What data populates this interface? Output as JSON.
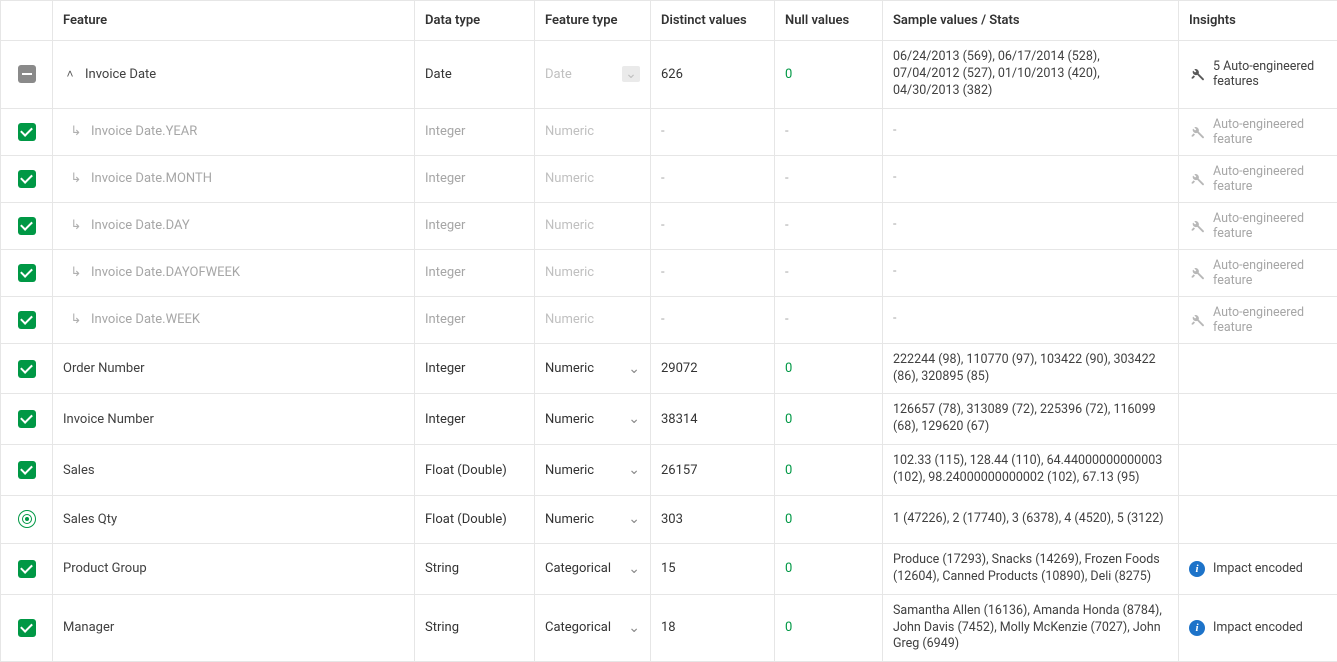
{
  "headers": {
    "feature": "Feature",
    "datatype": "Data type",
    "featuretype": "Feature type",
    "distinct": "Distinct values",
    "nulls": "Null values",
    "sample": "Sample values / Stats",
    "insights": "Insights"
  },
  "rows": [
    {
      "check": "indeterminate",
      "expand": "collapse",
      "feature": "Invoice Date",
      "datatype": "Date",
      "featuretype": "Date",
      "featuretype_disabled": true,
      "distinct": "626",
      "nulls": "0",
      "sample": "06/24/2013 (569), 06/17/2014 (528), 07/04/2012 (527), 01/10/2013 (420), 04/30/2013 (382)",
      "insight_type": "wrench",
      "insight": "5 Auto-engineered features",
      "child": false
    },
    {
      "check": "checked",
      "feature": "Invoice Date.YEAR",
      "datatype": "Integer",
      "featuretype": "Numeric",
      "featuretype_disabled": true,
      "distinct": "-",
      "nulls": "-",
      "sample": "-",
      "insight_type": "wrench-muted",
      "insight": "Auto-engineered feature",
      "child": true
    },
    {
      "check": "checked",
      "feature": "Invoice Date.MONTH",
      "datatype": "Integer",
      "featuretype": "Numeric",
      "featuretype_disabled": true,
      "distinct": "-",
      "nulls": "-",
      "sample": "-",
      "insight_type": "wrench-muted",
      "insight": "Auto-engineered feature",
      "child": true
    },
    {
      "check": "checked",
      "feature": "Invoice Date.DAY",
      "datatype": "Integer",
      "featuretype": "Numeric",
      "featuretype_disabled": true,
      "distinct": "-",
      "nulls": "-",
      "sample": "-",
      "insight_type": "wrench-muted",
      "insight": "Auto-engineered feature",
      "child": true
    },
    {
      "check": "checked",
      "feature": "Invoice Date.DAYOFWEEK",
      "datatype": "Integer",
      "featuretype": "Numeric",
      "featuretype_disabled": true,
      "distinct": "-",
      "nulls": "-",
      "sample": "-",
      "insight_type": "wrench-muted",
      "insight": "Auto-engineered feature",
      "child": true
    },
    {
      "check": "checked",
      "feature": "Invoice Date.WEEK",
      "datatype": "Integer",
      "featuretype": "Numeric",
      "featuretype_disabled": true,
      "distinct": "-",
      "nulls": "-",
      "sample": "-",
      "insight_type": "wrench-muted",
      "insight": "Auto-engineered feature",
      "child": true
    },
    {
      "check": "checked",
      "feature": "Order Number",
      "datatype": "Integer",
      "featuretype": "Numeric",
      "featuretype_disabled": false,
      "distinct": "29072",
      "nulls": "0",
      "sample": "222244 (98), 110770 (97), 103422 (90), 303422 (86), 320895 (85)",
      "insight_type": "none",
      "insight": "",
      "child": false
    },
    {
      "check": "checked",
      "feature": "Invoice Number",
      "datatype": "Integer",
      "featuretype": "Numeric",
      "featuretype_disabled": false,
      "distinct": "38314",
      "nulls": "0",
      "sample": "126657 (78), 313089 (72), 225396 (72), 116099 (68), 129620 (67)",
      "insight_type": "none",
      "insight": "",
      "child": false
    },
    {
      "check": "checked",
      "feature": "Sales",
      "datatype": "Float (Double)",
      "featuretype": "Numeric",
      "featuretype_disabled": false,
      "distinct": "26157",
      "nulls": "0",
      "sample": "102.33 (115), 128.44 (110), 64.44000000000003 (102), 98.24000000000002 (102), 67.13 (95)",
      "insight_type": "none",
      "insight": "",
      "child": false
    },
    {
      "check": "target",
      "feature": "Sales Qty",
      "datatype": "Float (Double)",
      "featuretype": "Numeric",
      "featuretype_disabled": false,
      "distinct": "303",
      "nulls": "0",
      "sample": "1 (47226), 2 (17740), 3 (6378), 4 (4520), 5 (3122)",
      "insight_type": "none",
      "insight": "",
      "child": false
    },
    {
      "check": "checked",
      "feature": "Product Group",
      "datatype": "String",
      "featuretype": "Categorical",
      "featuretype_disabled": false,
      "distinct": "15",
      "nulls": "0",
      "sample": "Produce (17293), Snacks (14269), Frozen Foods (12604), Canned Products (10890), Deli (8275)",
      "insight_type": "info",
      "insight": "Impact encoded",
      "child": false
    },
    {
      "check": "checked",
      "feature": "Manager",
      "datatype": "String",
      "featuretype": "Categorical",
      "featuretype_disabled": false,
      "distinct": "18",
      "nulls": "0",
      "sample": "Samantha Allen (16136), Amanda Honda (8784), John Davis (7452), Molly McKenzie (7027), John Greg (6949)",
      "insight_type": "info",
      "insight": "Impact encoded",
      "child": false
    }
  ],
  "colors": {
    "green": "#009845",
    "blue": "#1d73c9",
    "border": "#e6e6e6",
    "muted": "#a6a6a6"
  }
}
